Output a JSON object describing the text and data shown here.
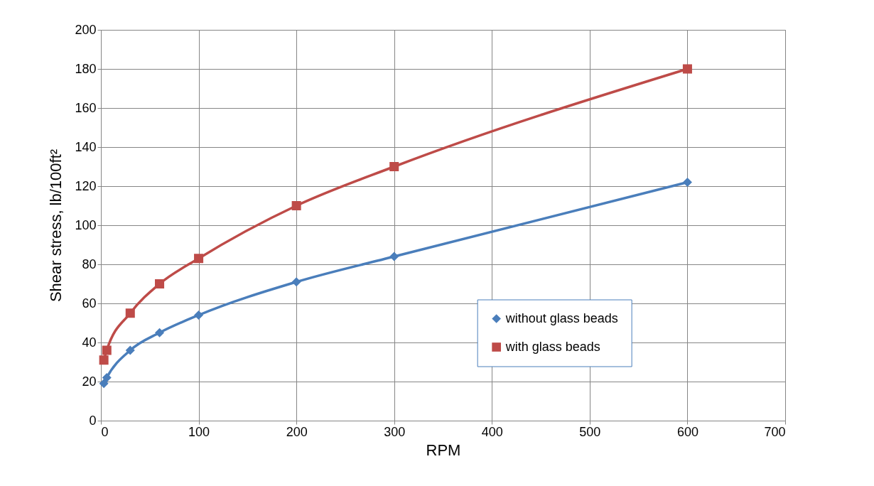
{
  "chart_data": {
    "type": "line",
    "xlabel": "RPM",
    "ylabel": "Shear stress, lb/100ft²",
    "xlim": [
      0,
      700
    ],
    "xticks": [
      0,
      100,
      200,
      300,
      400,
      500,
      600,
      700
    ],
    "ylim": [
      0,
      200
    ],
    "yticks": [
      0,
      20,
      40,
      60,
      80,
      100,
      120,
      140,
      160,
      180,
      200
    ],
    "grid": true,
    "legend": "bottom right",
    "line_style": "solid",
    "series": [
      {
        "name": "without glass beads",
        "color": "#4a7ebb",
        "marker": "diamond",
        "x": [
          3,
          6,
          30,
          60,
          100,
          200,
          300,
          600
        ],
        "values": [
          19,
          22,
          36,
          45,
          54,
          71,
          84,
          122
        ]
      },
      {
        "name": "with glass beads",
        "color": "#be4b48",
        "marker": "square",
        "x": [
          3,
          6,
          30,
          60,
          100,
          200,
          300,
          600
        ],
        "values": [
          31,
          36,
          55,
          70,
          83,
          110,
          130,
          180
        ]
      }
    ]
  }
}
